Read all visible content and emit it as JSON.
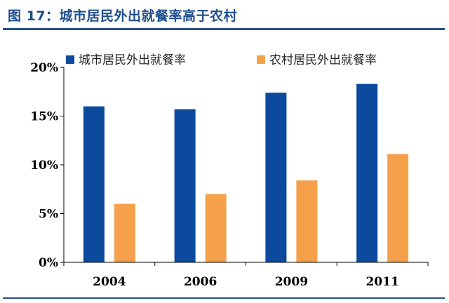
{
  "header": {
    "title": "图 17：城市居民外出就餐率高于农村"
  },
  "colors": {
    "urban": "#0b4a9c",
    "rural": "#f5a04b",
    "title": "#1f4e8c",
    "rule": "#2a4f8a"
  },
  "chart_data": {
    "type": "bar",
    "categories": [
      "2004",
      "2006",
      "2009",
      "2011"
    ],
    "series": [
      {
        "name": "城市居民外出就餐率",
        "values": [
          16.0,
          15.7,
          17.4,
          18.3
        ]
      },
      {
        "name": "农村居民外出就餐率",
        "values": [
          6.0,
          7.0,
          8.4,
          11.1
        ]
      }
    ],
    "yticks": [
      "0%",
      "5%",
      "10%",
      "15%",
      "20%"
    ],
    "ylim": [
      0,
      20
    ],
    "legend": "top",
    "grid": false
  }
}
